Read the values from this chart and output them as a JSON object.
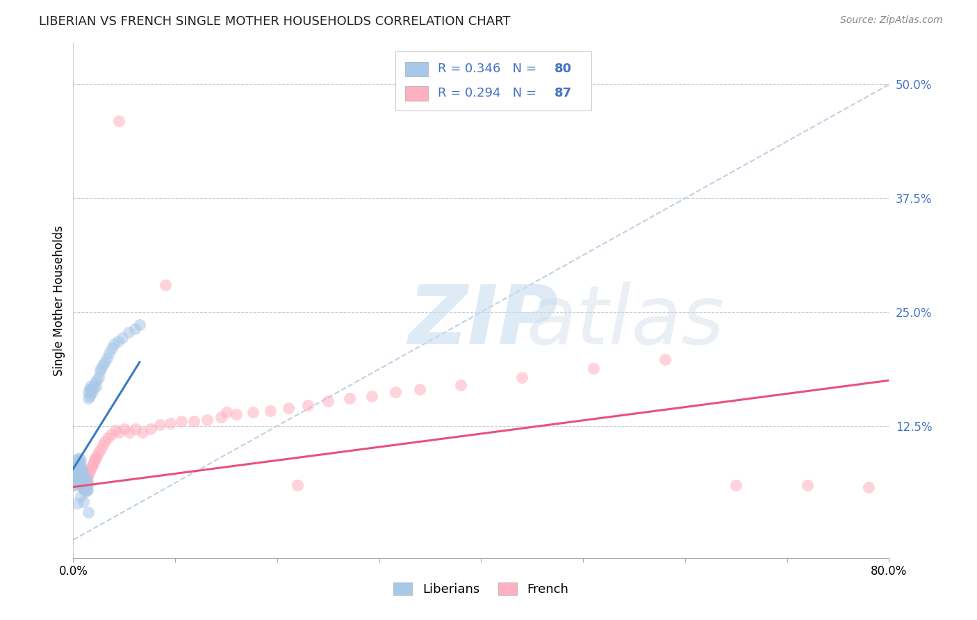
{
  "title": "LIBERIAN VS FRENCH SINGLE MOTHER HOUSEHOLDS CORRELATION CHART",
  "source": "Source: ZipAtlas.com",
  "ylabel": "Single Mother Households",
  "xlim": [
    0.0,
    0.8
  ],
  "ylim": [
    -0.02,
    0.545
  ],
  "color_blue": "#a8c8e8",
  "color_pink": "#ffb0c0",
  "color_blue_line": "#3a7abf",
  "color_pink_line": "#e8527a",
  "color_dashed": "#b8cce0",
  "color_axis_blue": "#4472c4",
  "color_legend_text": "#4472c4",
  "legend_r1": "0.346",
  "legend_n1": "80",
  "legend_r2": "0.294",
  "legend_n2": "87",
  "legend_labels": [
    "Liberians",
    "French"
  ],
  "liberian_x": [
    0.001,
    0.002,
    0.002,
    0.003,
    0.003,
    0.003,
    0.003,
    0.004,
    0.004,
    0.004,
    0.004,
    0.005,
    0.005,
    0.005,
    0.005,
    0.005,
    0.006,
    0.006,
    0.006,
    0.006,
    0.006,
    0.007,
    0.007,
    0.007,
    0.007,
    0.007,
    0.007,
    0.008,
    0.008,
    0.008,
    0.008,
    0.009,
    0.009,
    0.009,
    0.009,
    0.01,
    0.01,
    0.01,
    0.01,
    0.011,
    0.011,
    0.011,
    0.012,
    0.012,
    0.012,
    0.013,
    0.013,
    0.013,
    0.014,
    0.014,
    0.015,
    0.015,
    0.016,
    0.016,
    0.017,
    0.017,
    0.018,
    0.019,
    0.02,
    0.021,
    0.022,
    0.023,
    0.025,
    0.026,
    0.027,
    0.029,
    0.031,
    0.033,
    0.035,
    0.038,
    0.04,
    0.044,
    0.048,
    0.054,
    0.06,
    0.065,
    0.004,
    0.007,
    0.01,
    0.015
  ],
  "liberian_y": [
    0.06,
    0.07,
    0.075,
    0.065,
    0.07,
    0.075,
    0.08,
    0.072,
    0.078,
    0.082,
    0.088,
    0.068,
    0.073,
    0.078,
    0.083,
    0.09,
    0.065,
    0.07,
    0.075,
    0.08,
    0.086,
    0.062,
    0.068,
    0.073,
    0.078,
    0.083,
    0.088,
    0.06,
    0.065,
    0.07,
    0.076,
    0.058,
    0.064,
    0.069,
    0.075,
    0.056,
    0.061,
    0.067,
    0.073,
    0.055,
    0.06,
    0.066,
    0.053,
    0.059,
    0.064,
    0.055,
    0.06,
    0.066,
    0.055,
    0.06,
    0.155,
    0.162,
    0.158,
    0.165,
    0.16,
    0.168,
    0.165,
    0.162,
    0.168,
    0.172,
    0.168,
    0.175,
    0.178,
    0.185,
    0.188,
    0.192,
    0.195,
    0.2,
    0.205,
    0.21,
    0.215,
    0.218,
    0.222,
    0.228,
    0.232,
    0.236,
    0.04,
    0.048,
    0.042,
    0.03
  ],
  "french_x": [
    0.001,
    0.001,
    0.002,
    0.002,
    0.002,
    0.003,
    0.003,
    0.003,
    0.004,
    0.004,
    0.004,
    0.005,
    0.005,
    0.005,
    0.006,
    0.006,
    0.006,
    0.007,
    0.007,
    0.007,
    0.007,
    0.008,
    0.008,
    0.008,
    0.009,
    0.009,
    0.009,
    0.01,
    0.01,
    0.01,
    0.011,
    0.011,
    0.012,
    0.012,
    0.013,
    0.013,
    0.014,
    0.014,
    0.015,
    0.016,
    0.017,
    0.018,
    0.019,
    0.02,
    0.021,
    0.022,
    0.023,
    0.025,
    0.027,
    0.029,
    0.031,
    0.034,
    0.037,
    0.041,
    0.045,
    0.05,
    0.055,
    0.061,
    0.068,
    0.076,
    0.085,
    0.095,
    0.106,
    0.118,
    0.131,
    0.145,
    0.16,
    0.176,
    0.193,
    0.211,
    0.23,
    0.25,
    0.271,
    0.293,
    0.316,
    0.34,
    0.38,
    0.44,
    0.51,
    0.58,
    0.65,
    0.72,
    0.78,
    0.045,
    0.09,
    0.15,
    0.22
  ],
  "french_y": [
    0.06,
    0.065,
    0.062,
    0.068,
    0.072,
    0.064,
    0.07,
    0.075,
    0.066,
    0.072,
    0.078,
    0.068,
    0.074,
    0.079,
    0.064,
    0.07,
    0.076,
    0.062,
    0.068,
    0.074,
    0.08,
    0.06,
    0.066,
    0.072,
    0.058,
    0.064,
    0.07,
    0.056,
    0.062,
    0.068,
    0.058,
    0.064,
    0.06,
    0.066,
    0.062,
    0.068,
    0.064,
    0.07,
    0.072,
    0.075,
    0.078,
    0.08,
    0.082,
    0.085,
    0.088,
    0.09,
    0.092,
    0.096,
    0.1,
    0.104,
    0.108,
    0.112,
    0.116,
    0.12,
    0.118,
    0.122,
    0.118,
    0.122,
    0.118,
    0.122,
    0.126,
    0.128,
    0.13,
    0.13,
    0.132,
    0.135,
    0.138,
    0.14,
    0.142,
    0.145,
    0.148,
    0.152,
    0.155,
    0.158,
    0.162,
    0.165,
    0.17,
    0.178,
    0.188,
    0.198,
    0.06,
    0.06,
    0.058,
    0.46,
    0.28,
    0.14,
    0.06
  ],
  "blue_trend_x": [
    0.0,
    0.065
  ],
  "blue_trend_y": [
    0.078,
    0.195
  ],
  "pink_trend_x": [
    0.0,
    0.8
  ],
  "pink_trend_y": [
    0.058,
    0.175
  ],
  "dashed_line_x": [
    0.0,
    0.8
  ],
  "dashed_line_y": [
    0.0,
    0.5
  ],
  "yticks_right": [
    0.5,
    0.375,
    0.25,
    0.125
  ],
  "ytick_labels_right": [
    "50.0%",
    "37.5%",
    "25.0%",
    "12.5%"
  ]
}
